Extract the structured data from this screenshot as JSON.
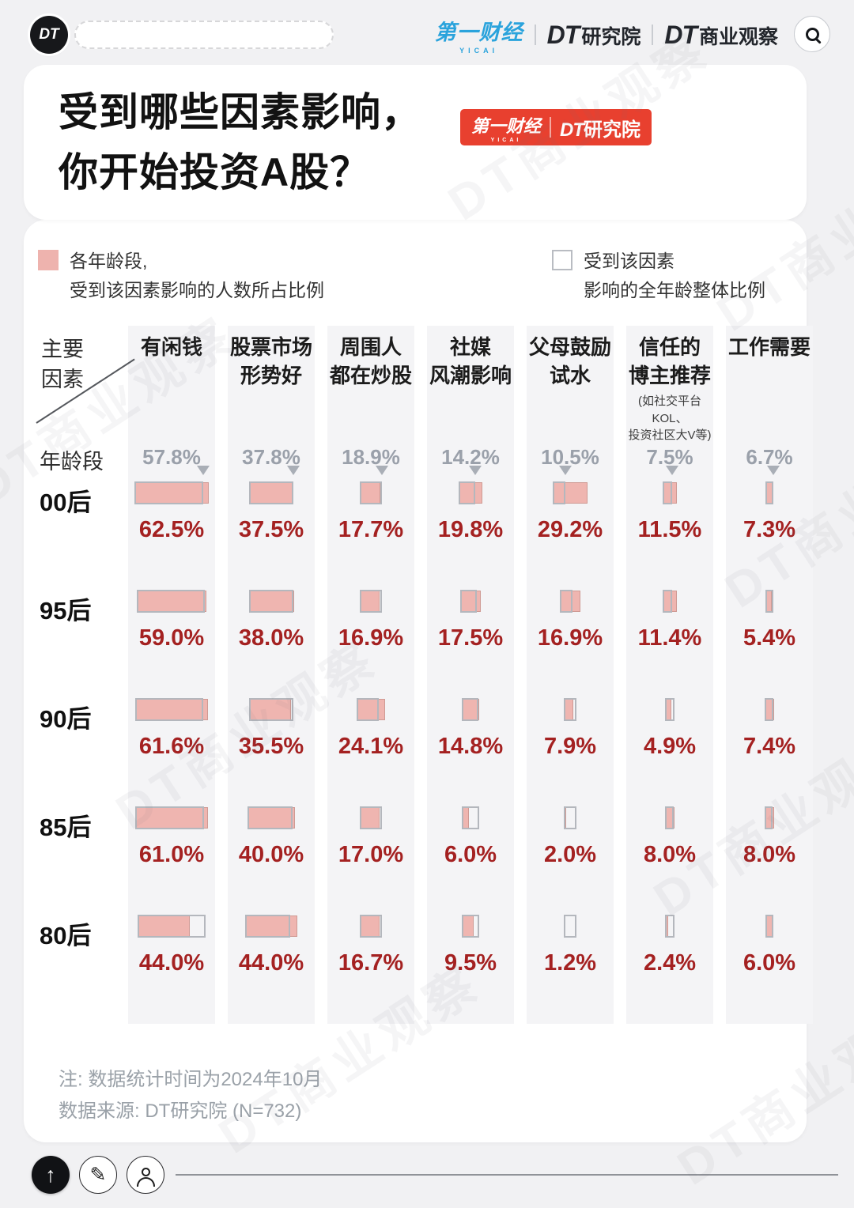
{
  "top_bar": {
    "logo_text": "DT",
    "brand_yicai": "第一财经",
    "brand_yicai_sub": "YICAI",
    "brand_dt_research_prefix": "DT",
    "brand_dt_research_suffix": "研究院",
    "brand_dt_business_prefix": "DT",
    "brand_dt_business_suffix": "商业观察"
  },
  "title": {
    "text": "受到哪些因素影响，\n你开始投资A股？",
    "badge_yicai": "第一财经",
    "badge_yicai_sub": "YICAI",
    "badge_dt_prefix": "DT",
    "badge_dt_suffix": "研究院"
  },
  "legend": {
    "group_label": "各年龄段,\n受到该因素影响的人数所占比例",
    "overall_label": "受到该因素\n影响的全年龄整体比例"
  },
  "axis": {
    "corner_top": "主要\n因素",
    "corner_bottom": "年龄段"
  },
  "chart_data": {
    "type": "bar",
    "title": "受到哪些因素影响，你开始投资A股？",
    "unit": "%",
    "legend_position": "top",
    "factors": [
      {
        "label": "有闲钱",
        "overall": 57.8
      },
      {
        "label": "股票市场\n形势好",
        "overall": 37.8
      },
      {
        "label": "周围人\n都在炒股",
        "overall": 18.9
      },
      {
        "label": "社媒\n风潮影响",
        "overall": 14.2
      },
      {
        "label": "父母鼓励\n试水",
        "overall": 10.5
      },
      {
        "label": "信任的\n博主推荐",
        "note": "(如社交平台KOL、\n投资社区大V等)",
        "overall": 7.5
      },
      {
        "label": "工作需要",
        "overall": 6.7
      }
    ],
    "age_groups": [
      "00后",
      "95后",
      "90后",
      "85后",
      "80后"
    ],
    "series": [
      {
        "name": "00后",
        "values": [
          62.5,
          37.5,
          17.7,
          19.8,
          29.2,
          11.5,
          7.3
        ]
      },
      {
        "name": "95后",
        "values": [
          59.0,
          38.0,
          16.9,
          17.5,
          16.9,
          11.4,
          5.4
        ]
      },
      {
        "name": "90后",
        "values": [
          61.6,
          35.5,
          24.1,
          14.8,
          7.9,
          4.9,
          7.4
        ]
      },
      {
        "name": "85后",
        "values": [
          61.0,
          40.0,
          17.0,
          6.0,
          2.0,
          8.0,
          8.0
        ]
      },
      {
        "name": "80后",
        "values": [
          44.0,
          44.0,
          16.7,
          9.5,
          1.2,
          2.4,
          6.0
        ]
      }
    ]
  },
  "footnote": {
    "line1": "注: 数据统计时间为2024年10月",
    "line2": "数据来源: DT研究院 (N=732)"
  },
  "watermark_text": "DT商业观察",
  "colors": {
    "value_red": "#a42121",
    "badge_red": "#e8402f",
    "bar_pink": "#efb5b0",
    "overall_outline": "#b4b7bd",
    "yicai_blue": "#2aa3dc",
    "strip_bg": "#f4f4f6"
  }
}
